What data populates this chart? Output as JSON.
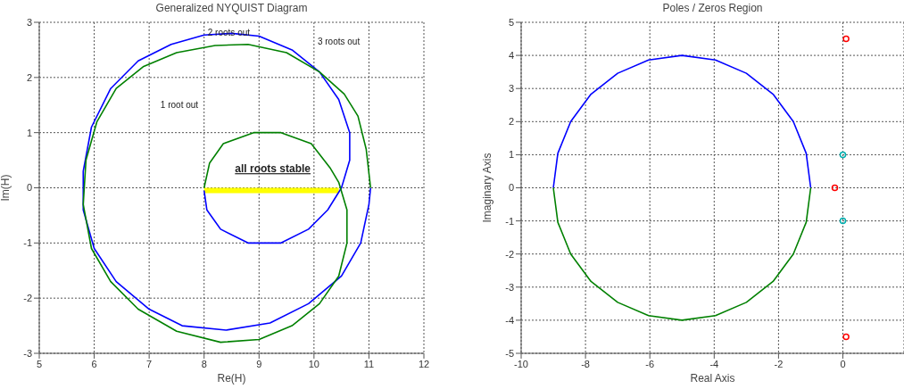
{
  "chart_data": [
    {
      "type": "line",
      "title": "Generalized NYQUIST Diagram",
      "xlabel": "Re(H)",
      "ylabel": "Im(H)",
      "xlim": [
        5,
        12
      ],
      "ylim": [
        -3,
        3
      ],
      "xticks": [
        5,
        6,
        7,
        8,
        9,
        10,
        11,
        12
      ],
      "yticks": [
        -3,
        -2,
        -1,
        0,
        1,
        2,
        3
      ],
      "grid": true,
      "marker": "none",
      "line_style": "solid",
      "annotations": [
        "2 roots out",
        "3 roots out",
        "1 root out",
        "all roots stable"
      ],
      "series": [
        {
          "color": "#ffff00",
          "x": [
            8.0,
            10.45
          ],
          "values": [
            -0.05,
            -0.05
          ]
        },
        {
          "color": "#0000ff",
          "x": [
            8.0,
            8.05,
            8.3,
            8.8,
            9.4,
            9.9,
            10.25,
            10.5,
            10.65,
            10.65,
            10.45,
            10.1,
            9.6,
            9.0,
            8.5,
            8.0,
            7.4,
            6.8,
            6.3,
            5.95,
            5.8,
            5.8,
            6.0,
            6.4,
            7.0,
            7.6,
            8.4,
            9.2,
            9.9,
            10.5,
            10.85,
            11.0,
            11.03
          ],
          "values": [
            -0.05,
            -0.4,
            -0.75,
            -1.0,
            -1.0,
            -0.75,
            -0.4,
            0.0,
            0.5,
            1.0,
            1.6,
            2.1,
            2.5,
            2.75,
            2.8,
            2.77,
            2.6,
            2.3,
            1.8,
            1.1,
            0.3,
            -0.4,
            -1.1,
            -1.7,
            -2.2,
            -2.5,
            -2.58,
            -2.45,
            -2.1,
            -1.6,
            -1.0,
            -0.3,
            0.0
          ]
        },
        {
          "color": "#008000",
          "x": [
            11.03,
            10.95,
            10.8,
            10.55,
            10.1,
            9.5,
            8.8,
            8.2,
            7.5,
            6.9,
            6.4,
            6.05,
            5.85,
            5.8,
            5.95,
            6.3,
            6.8,
            7.5,
            8.3,
            9.0,
            9.6,
            10.1,
            10.45,
            10.6,
            10.6,
            10.45,
            10.3,
            9.95,
            9.4,
            8.9,
            8.35,
            8.1,
            8.0
          ],
          "values": [
            0.0,
            0.7,
            1.3,
            1.7,
            2.1,
            2.45,
            2.6,
            2.58,
            2.45,
            2.2,
            1.8,
            1.2,
            0.5,
            -0.3,
            -1.1,
            -1.7,
            -2.2,
            -2.6,
            -2.8,
            -2.75,
            -2.5,
            -2.1,
            -1.6,
            -1.0,
            -0.4,
            0.1,
            0.35,
            0.8,
            1.0,
            1.0,
            0.8,
            0.45,
            0.0
          ]
        }
      ]
    },
    {
      "type": "line",
      "title": "Poles / Zeros Region",
      "xlabel": "Real Axis",
      "ylabel": "Imaginary Axis",
      "xlim": [
        -10,
        1.9
      ],
      "ylim": [
        -5,
        5
      ],
      "xticks": [
        -10,
        -8,
        -6,
        -4,
        -2,
        0
      ],
      "yticks": [
        -5,
        -4,
        -3,
        -2,
        -1,
        0,
        1,
        2,
        3,
        4,
        5
      ],
      "grid": true,
      "marker": "none",
      "line_style": "solid",
      "series": [
        {
          "color": "#0000ff",
          "x": [
            -1,
            -1.14,
            -1.54,
            -2.17,
            -3,
            -3.96,
            -5,
            -6.04,
            -7,
            -7.83,
            -8.46,
            -8.86,
            -9
          ],
          "values": [
            0,
            1.04,
            2,
            2.83,
            3.46,
            3.86,
            4,
            3.86,
            3.46,
            2.83,
            2,
            1.04,
            0
          ]
        },
        {
          "color": "#008000",
          "x": [
            -1,
            -1.14,
            -1.54,
            -2.17,
            -3,
            -3.96,
            -5,
            -6.04,
            -7,
            -7.83,
            -8.46,
            -8.86,
            -9
          ],
          "values": [
            0,
            -1.04,
            -2,
            -2.83,
            -3.46,
            -3.86,
            -4,
            -3.86,
            -3.46,
            -2.83,
            -2,
            -1.04,
            0
          ]
        },
        {
          "type": "scatter",
          "marker": "circle",
          "color": "#ff0000",
          "x": [
            0.1,
            -0.25,
            0.1
          ],
          "values": [
            4.5,
            0,
            -4.5
          ]
        },
        {
          "type": "scatter",
          "marker": "circle",
          "color": "#00b0b0",
          "x": [
            0,
            0
          ],
          "values": [
            1,
            -1
          ]
        }
      ]
    }
  ]
}
